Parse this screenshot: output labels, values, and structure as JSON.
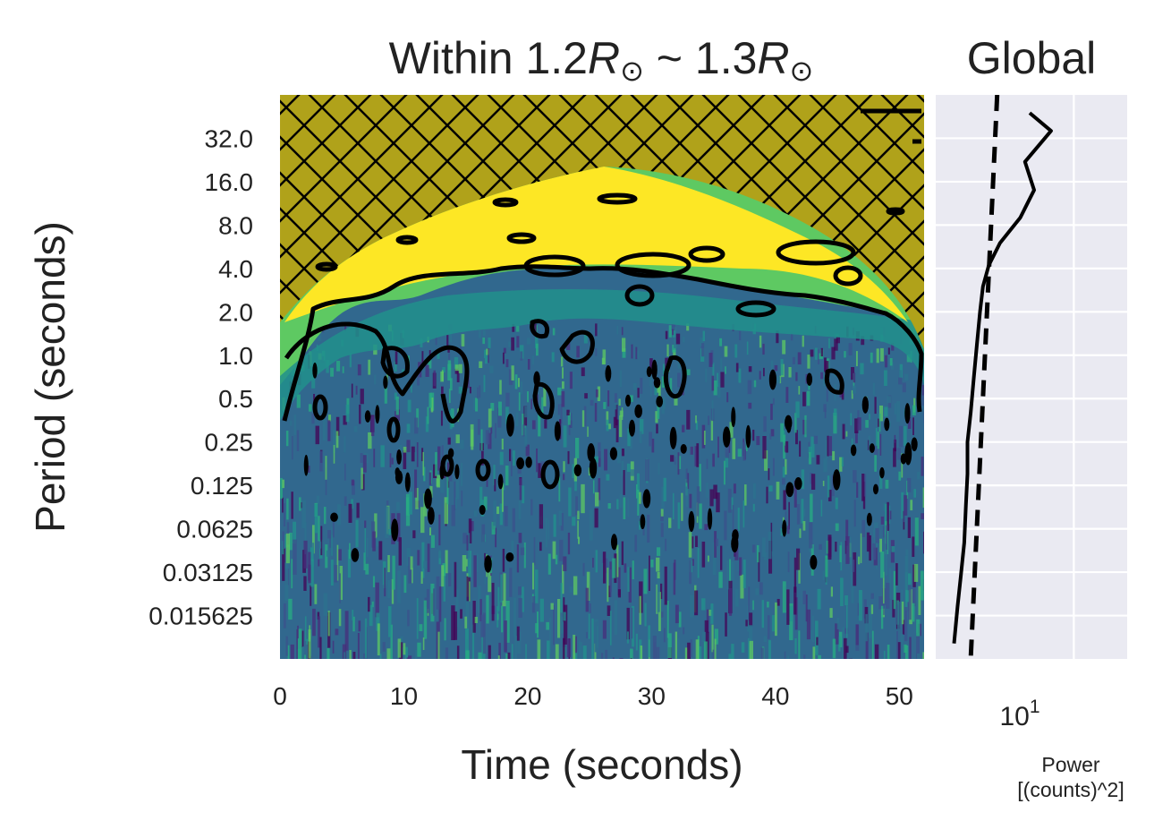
{
  "chart_data": [
    {
      "type": "heatmap",
      "title": {
        "prefix": "Within 1.2",
        "sym1": "R",
        "mid": " ~ 1.3",
        "sym2": "R",
        "sun": "⊙"
      },
      "xlabel": "Time (seconds)",
      "ylabel": "Period (seconds)",
      "x_range": [
        0,
        52
      ],
      "x_ticks": [
        "0",
        "10",
        "20",
        "30",
        "40",
        "50"
      ],
      "x_tick_values": [
        0,
        10,
        20,
        30,
        40,
        50
      ],
      "y_scale": "log2",
      "y_range": [
        0.0078125,
        64
      ],
      "y_ticks": [
        "32.0",
        "16.0",
        "8.0",
        "4.0",
        "2.0",
        "1.0",
        "0.5",
        "0.25",
        "0.125",
        "0.0625",
        "0.03125",
        "0.015625"
      ],
      "y_tick_values": [
        32,
        16,
        8,
        4,
        2,
        1,
        0.5,
        0.25,
        0.125,
        0.0625,
        0.03125,
        0.015625
      ],
      "colormap": "viridis",
      "cone_of_influence": "hatched",
      "significance_contours": "black",
      "grid": false
    },
    {
      "type": "line",
      "title": "Global",
      "xlabel": "Power\n[(counts)^2]",
      "x_scale": "log",
      "x_tick_labels": [
        {
          "base": "10",
          "exp": "1"
        }
      ],
      "y_scale": "log2",
      "grid": true,
      "series": [
        {
          "style": "solid",
          "points": [
            [
              7.8,
              48
            ],
            [
              8.8,
              36
            ],
            [
              7.6,
              22
            ],
            [
              8.0,
              14
            ],
            [
              7.4,
              9
            ],
            [
              6.6,
              6
            ],
            [
              6.2,
              4.2
            ],
            [
              6.0,
              3.0
            ],
            [
              5.9,
              2.0
            ],
            [
              5.8,
              1.2
            ],
            [
              5.7,
              0.7
            ],
            [
              5.6,
              0.4
            ],
            [
              5.5,
              0.25
            ],
            [
              5.5,
              0.15
            ],
            [
              5.45,
              0.09
            ],
            [
              5.4,
              0.05
            ],
            [
              5.3,
              0.03
            ],
            [
              5.2,
              0.018
            ],
            [
              5.1,
              0.01
            ]
          ]
        },
        {
          "style": "dashed",
          "points": [
            [
              6.5,
              64
            ],
            [
              5.6,
              0.0078125
            ]
          ]
        }
      ]
    }
  ]
}
